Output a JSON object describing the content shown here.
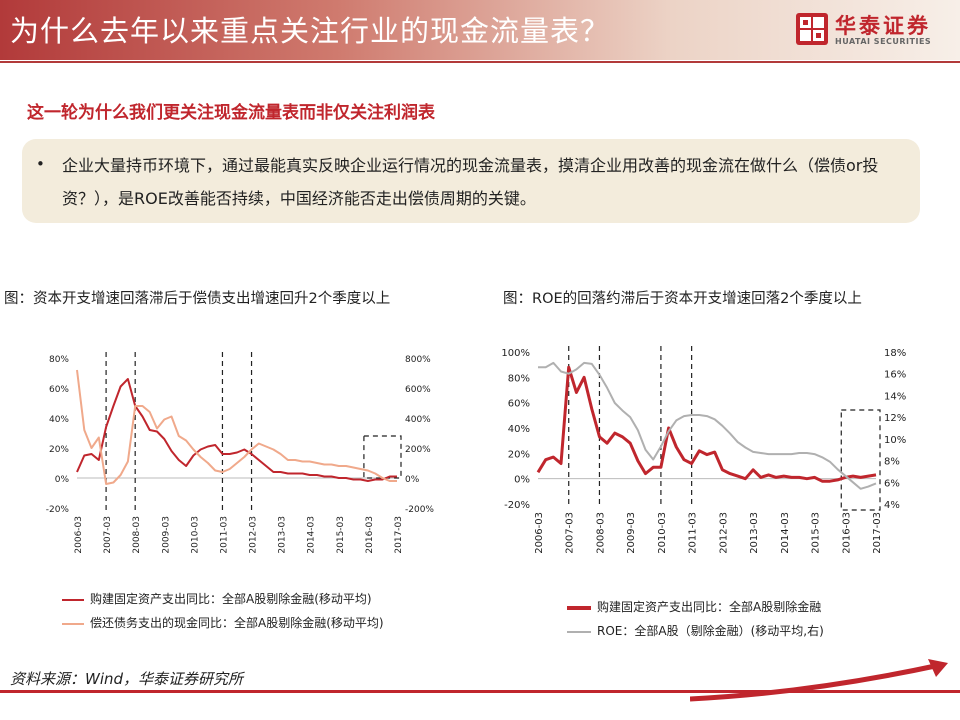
{
  "header": {
    "title": "为什么去年以来重点关注行业的现金流量表？"
  },
  "logo": {
    "name_cn": "华泰证券",
    "name_en": "HUATAI SECURITIES"
  },
  "subtitle": "这一轮为什么我们更关注现金流量表而非仅关注利润表",
  "bullet": {
    "marker": "•",
    "text": "企业大量持币环境下，通过最能真实反映企业运行情况的现金流量表，摸清企业用改善的现金流在做什么（偿债or投资？），是ROE改善能否持续，中国经济能否走出偿债周期的关键。"
  },
  "source": "资料来源：Wind，华泰证券研究所",
  "colors": {
    "brand_red": "#c0262d",
    "series_dark_red": "#c0262d",
    "series_salmon": "#f0a98b",
    "series_gray": "#b0b0b0",
    "box_bg": "#f3ecdc"
  },
  "chart_data": [
    {
      "type": "line",
      "title": "图：资本开支增速回落滞后于偿债支出增速回升2个季度以上",
      "x": [
        "2006-03",
        "2006-06",
        "2006-09",
        "2006-12",
        "2007-03",
        "2007-06",
        "2007-09",
        "2007-12",
        "2008-03",
        "2008-06",
        "2008-09",
        "2008-12",
        "2009-03",
        "2009-06",
        "2009-09",
        "2009-12",
        "2010-03",
        "2010-06",
        "2010-09",
        "2010-12",
        "2011-03",
        "2011-06",
        "2011-09",
        "2011-12",
        "2012-03",
        "2012-06",
        "2012-09",
        "2012-12",
        "2013-03",
        "2013-06",
        "2013-09",
        "2013-12",
        "2014-03",
        "2014-06",
        "2014-09",
        "2014-12",
        "2015-03",
        "2015-06",
        "2015-09",
        "2015-12",
        "2016-03",
        "2016-06",
        "2016-09",
        "2016-12",
        "2017-03"
      ],
      "x_tick_labels": [
        "2006-03",
        "2007-03",
        "2008-03",
        "2009-03",
        "2010-03",
        "2011-03",
        "2012-03",
        "2013-03",
        "2014-03",
        "2015-03",
        "2016-03",
        "2017-03"
      ],
      "yleft_ticks": [
        "80%",
        "60%",
        "40%",
        "20%",
        "0%",
        "-20%"
      ],
      "yright_ticks": [
        "800%",
        "600%",
        "400%",
        "200%",
        "0%",
        "-200%"
      ],
      "ylim_left": [
        -20,
        80
      ],
      "ylim_right": [
        -200,
        800
      ],
      "vlines_x": [
        "2007-03",
        "2008-03",
        "2011-03",
        "2012-03"
      ],
      "highlight_box": [
        "2016-03",
        "2017-03"
      ],
      "series": [
        {
          "name": "购建固定资产支出同比：全部A股剔除金融(移动平均)",
          "axis": "left",
          "values": [
            4,
            15,
            16,
            12,
            34,
            48,
            61,
            66,
            48,
            41,
            32,
            31,
            26,
            18,
            12,
            8,
            15,
            19,
            21,
            22,
            16,
            16,
            17,
            19,
            16,
            12,
            8,
            4,
            4,
            3,
            3,
            3,
            2,
            2,
            1,
            1,
            0,
            0,
            -1,
            -1,
            -2,
            -1,
            -1,
            1,
            1
          ]
        },
        {
          "name": "偿还债务支出的现金同比：全部A股剔除金融(移动平均)",
          "axis": "right",
          "values": [
            720,
            320,
            200,
            270,
            -40,
            -30,
            20,
            110,
            480,
            480,
            440,
            330,
            390,
            410,
            280,
            250,
            190,
            140,
            100,
            50,
            40,
            60,
            100,
            140,
            190,
            230,
            210,
            190,
            160,
            120,
            120,
            110,
            110,
            100,
            90,
            90,
            80,
            80,
            70,
            60,
            50,
            30,
            0,
            -20,
            -20
          ]
        }
      ]
    },
    {
      "type": "line",
      "title": "图：ROE的回落约滞后于资本开支增速回落2个季度以上",
      "x": [
        "2006-03",
        "2006-06",
        "2006-09",
        "2006-12",
        "2007-03",
        "2007-06",
        "2007-09",
        "2007-12",
        "2008-03",
        "2008-06",
        "2008-09",
        "2008-12",
        "2009-03",
        "2009-06",
        "2009-09",
        "2009-12",
        "2010-03",
        "2010-06",
        "2010-09",
        "2010-12",
        "2011-03",
        "2011-06",
        "2011-09",
        "2011-12",
        "2012-03",
        "2012-06",
        "2012-09",
        "2012-12",
        "2013-03",
        "2013-06",
        "2013-09",
        "2013-12",
        "2014-03",
        "2014-06",
        "2014-09",
        "2014-12",
        "2015-03",
        "2015-06",
        "2015-09",
        "2015-12",
        "2016-03",
        "2016-06",
        "2016-09",
        "2016-12",
        "2017-03"
      ],
      "x_tick_labels": [
        "2006-03",
        "2007-03",
        "2008-03",
        "2009-03",
        "2010-03",
        "2011-03",
        "2012-03",
        "2013-03",
        "2014-03",
        "2015-03",
        "2016-03",
        "2017-03"
      ],
      "yleft_ticks": [
        "100%",
        "80%",
        "60%",
        "40%",
        "20%",
        "0%",
        "-20%"
      ],
      "yright_ticks": [
        "18%",
        "16%",
        "14%",
        "12%",
        "10%",
        "8%",
        "6%",
        "4%"
      ],
      "ylim_left": [
        -20,
        100
      ],
      "ylim_right": [
        4,
        18
      ],
      "vlines_x": [
        "2007-03",
        "2008-03",
        "2010-03",
        "2011-03"
      ],
      "highlight_box": [
        "2016-03",
        "2017-03"
      ],
      "series": [
        {
          "name": "购建固定资产支出同比：全部A股剔除金融",
          "axis": "left",
          "values": [
            5,
            15,
            17,
            12,
            88,
            68,
            80,
            55,
            33,
            28,
            36,
            33,
            28,
            14,
            4,
            9,
            9,
            40,
            25,
            15,
            12,
            22,
            19,
            21,
            7,
            4,
            2,
            0,
            7,
            1,
            3,
            1,
            2,
            1,
            1,
            0,
            1,
            -2,
            -2,
            -1,
            1,
            2,
            1,
            2,
            3
          ]
        },
        {
          "name": "ROE：全部A股（剔除金融）(移动平均,右)",
          "axis": "right",
          "values": [
            16.6,
            16.6,
            17.0,
            16.2,
            16.0,
            16.4,
            17.0,
            16.9,
            15.9,
            14.7,
            13.3,
            12.6,
            12.0,
            10.8,
            9.0,
            8.1,
            9.3,
            10.7,
            11.7,
            12.1,
            12.2,
            12.2,
            12.1,
            11.8,
            11.2,
            10.5,
            9.7,
            9.2,
            8.8,
            8.7,
            8.6,
            8.6,
            8.6,
            8.6,
            8.7,
            8.7,
            8.6,
            8.3,
            7.9,
            7.2,
            6.6,
            6.0,
            5.4,
            5.6,
            5.9
          ]
        }
      ]
    }
  ]
}
